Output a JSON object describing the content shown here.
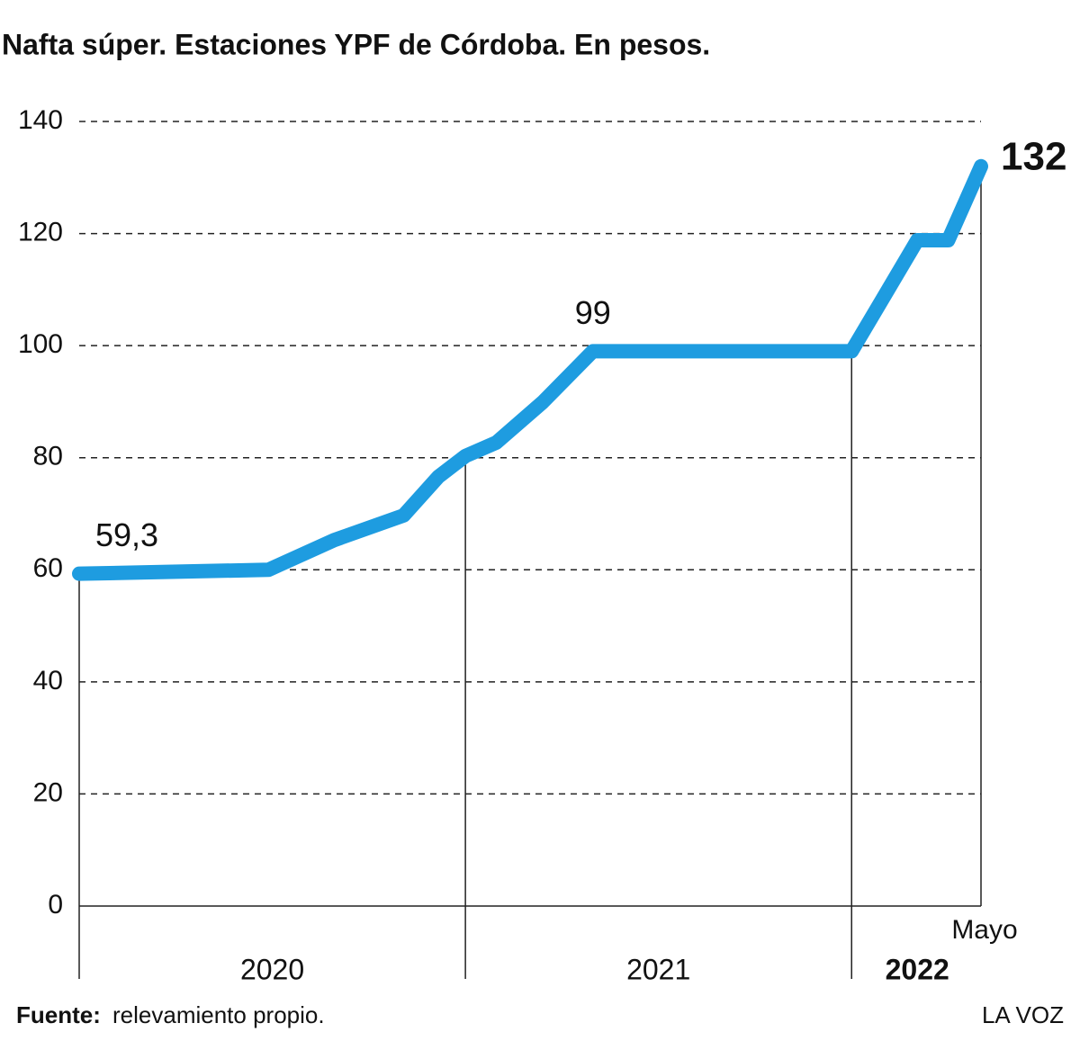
{
  "chart_data": {
    "type": "line",
    "title": "Nafta súper. Estaciones YPF de Córdoba. En pesos.",
    "x": [
      2020.0,
      2020.49,
      2020.66,
      2020.84,
      2020.93,
      2021.0,
      2021.08,
      2021.2,
      2021.33,
      2022.0,
      2022.08,
      2022.17,
      2022.25,
      2022.335
    ],
    "series": [
      {
        "name": "Nafta súper",
        "color": "#1e9ce0",
        "values": [
          59.3,
          60,
          65.3,
          69.7,
          76.6,
          80.3,
          82.7,
          89.9,
          99,
          99,
          108.3,
          118.8,
          118.8,
          132
        ],
        "value_labels": [
          "59,3",
          null,
          null,
          null,
          null,
          null,
          null,
          null,
          "99",
          null,
          null,
          null,
          null,
          "132"
        ]
      }
    ],
    "xlim": [
      2020.0,
      2022.335
    ],
    "xticks": [
      {
        "value": 2020.5,
        "label": "2020"
      },
      {
        "value": 2021.5,
        "label": "2021"
      },
      {
        "value": 2022.17,
        "label": "2022"
      }
    ],
    "dividers": [
      2020,
      2021,
      2022
    ],
    "x_annotation": "Mayo",
    "ylim": [
      0,
      140
    ],
    "yticks": [
      0,
      20,
      40,
      60,
      80,
      100,
      120,
      140
    ],
    "grid": true,
    "source_label": "Fuente:",
    "source": "relevamiento propio.",
    "credit": "LA VOZ"
  }
}
